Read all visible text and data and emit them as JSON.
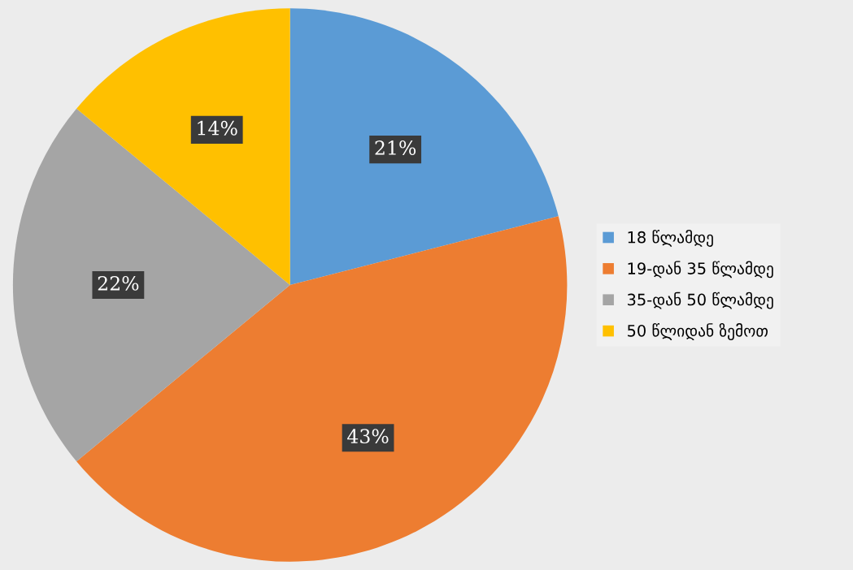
{
  "chart_data": {
    "type": "pie",
    "categories": [
      "18 წლამდე",
      "19-დან 35 წლამდე",
      "35-დან 50 წლამდე",
      "50 წლიდან ზემოთ"
    ],
    "values": [
      21,
      43,
      22,
      14
    ],
    "colors": [
      "#5b9bd5",
      "#ed7d31",
      "#a5a5a5",
      "#ffc000"
    ],
    "value_labels": [
      "21%",
      "43%",
      "22%",
      "14%"
    ],
    "legend": "right"
  }
}
